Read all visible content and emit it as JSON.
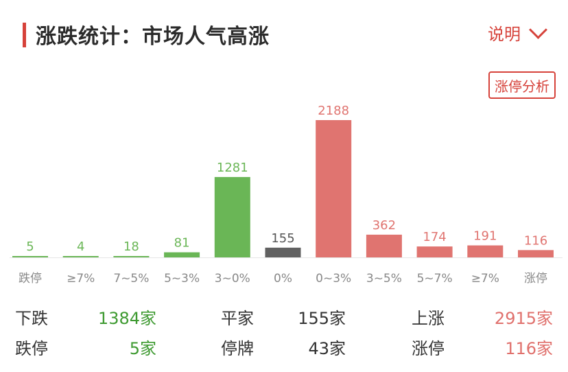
{
  "header": {
    "title": "涨跌统计：市场人气高涨",
    "explain_label": "说明"
  },
  "limit_analysis_label": "涨停分析",
  "colors": {
    "up": "#e07470",
    "down": "#6ab656",
    "flat": "#616161",
    "accent": "#d6423a"
  },
  "chart_data": {
    "type": "bar",
    "categories": [
      "跌停",
      "≥7%",
      "7~5%",
      "5~3%",
      "3~0%",
      "0%",
      "0~3%",
      "3~5%",
      "5~7%",
      "≥7%",
      "涨停"
    ],
    "values": [
      5,
      4,
      18,
      81,
      1281,
      155,
      2188,
      362,
      174,
      191,
      116
    ],
    "bar_colors": [
      "down",
      "down",
      "down",
      "down",
      "down",
      "flat",
      "up",
      "up",
      "up",
      "up",
      "up"
    ],
    "title": "",
    "xlabel": "",
    "ylabel": ""
  },
  "stats": {
    "down_label": "下跌",
    "down_value": "1384家",
    "flat_label": "平家",
    "flat_value": "155家",
    "up_label": "上涨",
    "up_value": "2915家",
    "limit_down_label": "跌停",
    "limit_down_value": "5家",
    "suspended_label": "停牌",
    "suspended_value": "43家",
    "limit_up_label": "涨停",
    "limit_up_value": "116家"
  }
}
